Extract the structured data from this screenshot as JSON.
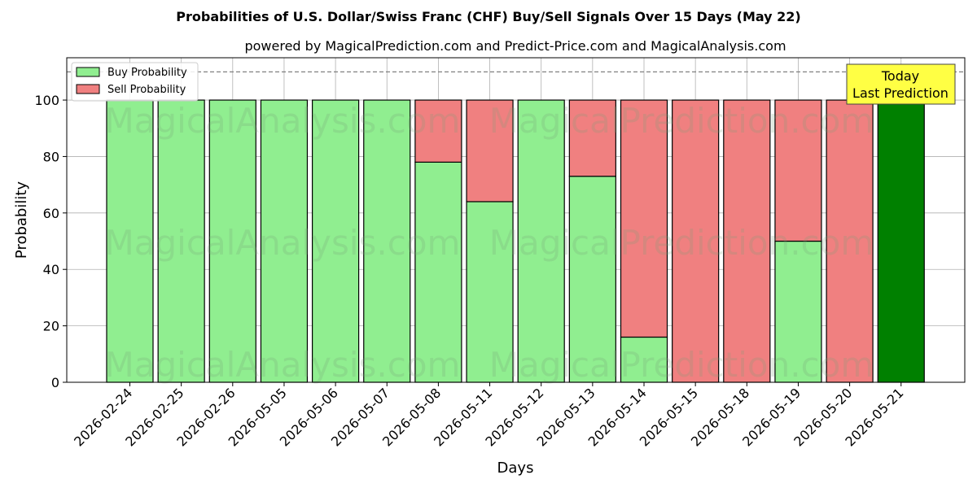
{
  "chart_data": {
    "type": "bar",
    "stacked": true,
    "title": "Probabilities of U.S. Dollar/Swiss Franc (CHF) Buy/Sell Signals Over 15 Days (May 22)",
    "subtitle": "powered by MagicalPrediction.com and Predict-Price.com and MagicalAnalysis.com",
    "xlabel": "Days",
    "ylabel": "Probability",
    "ylim": [
      0,
      115
    ],
    "yticks": [
      0,
      20,
      40,
      60,
      80,
      100
    ],
    "grid": true,
    "legend_position": "top-left",
    "reference_line": 110,
    "categories": [
      "2026-02-24",
      "2026-02-25",
      "2026-02-26",
      "2026-05-05",
      "2026-05-06",
      "2026-05-07",
      "2026-05-08",
      "2026-05-11",
      "2026-05-12",
      "2026-05-13",
      "2026-05-14",
      "2026-05-15",
      "2026-05-18",
      "2026-05-19",
      "2026-05-20",
      "2026-05-21"
    ],
    "series": [
      {
        "name": "Buy Probability",
        "color": "#90ee90",
        "values": [
          100,
          100,
          100,
          100,
          100,
          100,
          78,
          64,
          100,
          73,
          16,
          0,
          0,
          50,
          0,
          100
        ]
      },
      {
        "name": "Sell Probability",
        "color": "#f08080",
        "values": [
          0,
          0,
          0,
          0,
          0,
          0,
          22,
          36,
          0,
          27,
          84,
          100,
          100,
          50,
          100,
          0
        ]
      }
    ],
    "highlight": {
      "index": 15,
      "color": "#008000"
    },
    "annotation": {
      "line1": "Today",
      "line2": "Last Prediction",
      "color": "#ffff44"
    },
    "watermarks": [
      "MagicalAnalysis.com",
      "MagicalPrediction.com"
    ]
  }
}
